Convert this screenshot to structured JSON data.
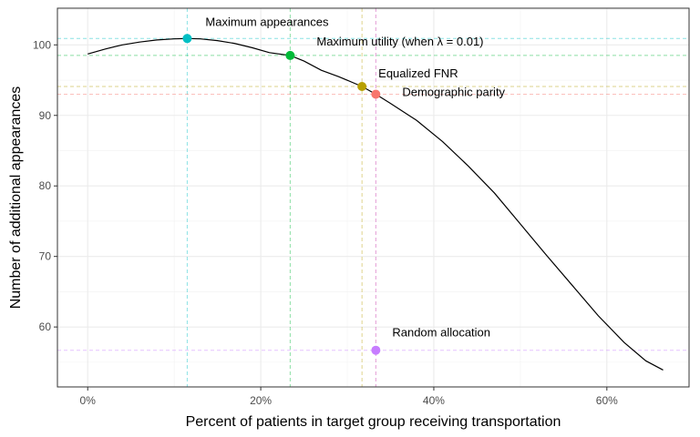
{
  "chart_data": {
    "type": "line",
    "xlabel": "Percent of patients in target group receiving transportation",
    "ylabel": "Number of additional appearances",
    "xlim": [
      -0.035,
      0.695
    ],
    "ylim": [
      51.5,
      105.2
    ],
    "x_ticks": [
      0,
      0.2,
      0.4,
      0.6
    ],
    "x_tick_labels": [
      "0%",
      "20%",
      "40%",
      "60%"
    ],
    "y_ticks": [
      60,
      70,
      80,
      90,
      100
    ],
    "y_tick_labels": [
      "60",
      "70",
      "80",
      "90",
      "100"
    ],
    "grid": true,
    "legend": "none",
    "curve": {
      "x": [
        0,
        0.02,
        0.04,
        0.06,
        0.08,
        0.1,
        0.115,
        0.13,
        0.15,
        0.17,
        0.19,
        0.21,
        0.234,
        0.25,
        0.27,
        0.29,
        0.317,
        0.333,
        0.35,
        0.38,
        0.41,
        0.44,
        0.47,
        0.5,
        0.53,
        0.56,
        0.59,
        0.62,
        0.645,
        0.665
      ],
      "y": [
        98.7,
        99.4,
        100.0,
        100.4,
        100.7,
        100.85,
        100.9,
        100.85,
        100.6,
        100.2,
        99.6,
        98.9,
        98.5,
        97.7,
        96.4,
        95.5,
        94.1,
        93.0,
        91.7,
        89.3,
        86.3,
        82.8,
        79.0,
        74.6,
        70.2,
        65.9,
        61.6,
        57.8,
        55.2,
        53.9
      ],
      "color": "#000000"
    },
    "points": [
      {
        "label": "Maximum appearances",
        "x": 0.115,
        "y": 100.9,
        "color": "#00bfc4"
      },
      {
        "label": "Maximum utility (when λ  = 0.01)",
        "x": 0.234,
        "y": 98.5,
        "color": "#00ba38"
      },
      {
        "label": "Equalized FNR",
        "x": 0.317,
        "y": 94.1,
        "color": "#b79f00"
      },
      {
        "label": "Demographic parity",
        "x": 0.333,
        "y": 93.0,
        "color": "#f8766d"
      },
      {
        "label": "Random allocation",
        "x": 0.333,
        "y": 56.7,
        "color": "#c77cff"
      }
    ]
  }
}
